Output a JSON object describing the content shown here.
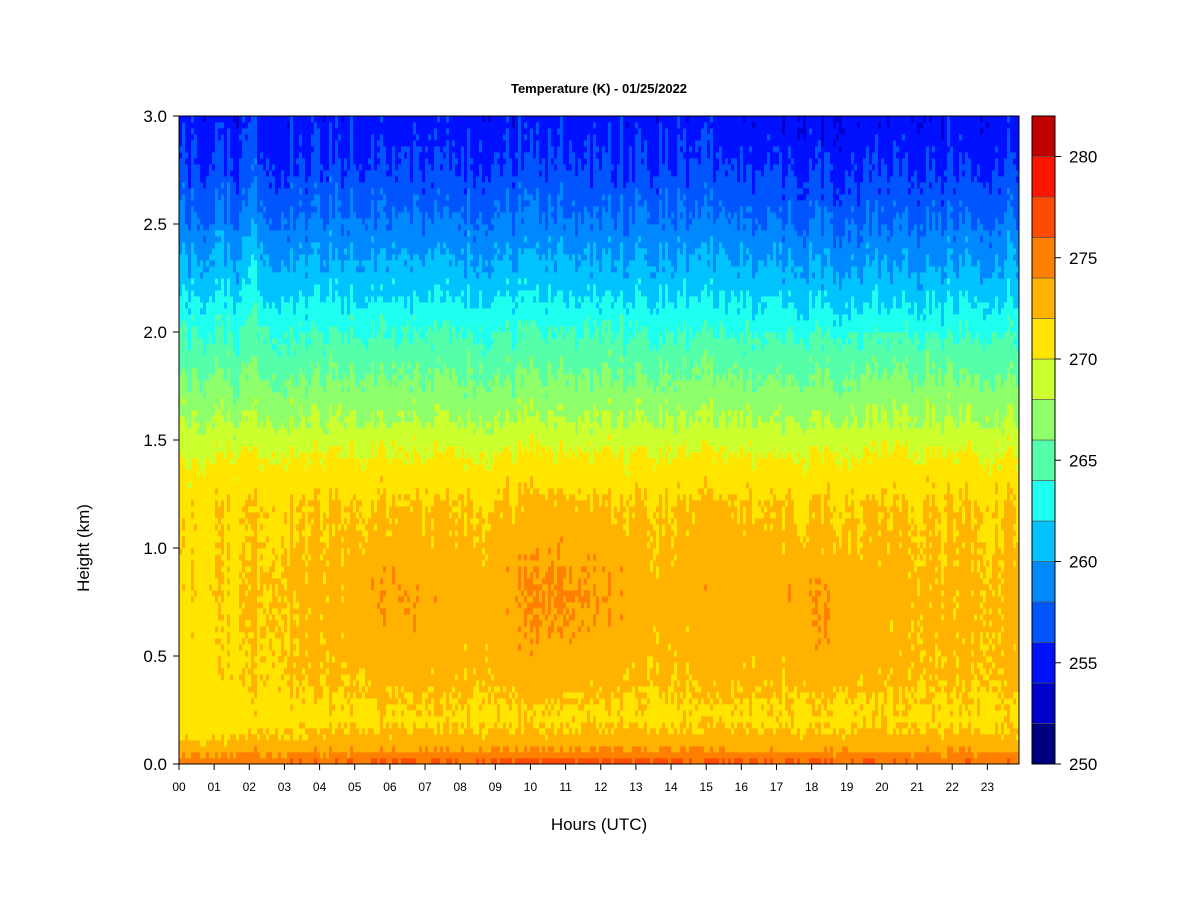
{
  "chart_data": {
    "type": "heatmap",
    "title": "Temperature (K) - 01/25/2022",
    "xlabel": "Hours (UTC)",
    "ylabel": "Height (km)",
    "xlim": [
      0,
      23.9
    ],
    "ylim": [
      0.0,
      3.0
    ],
    "x_ticks": [
      "00",
      "01",
      "02",
      "03",
      "04",
      "05",
      "06",
      "07",
      "08",
      "09",
      "10",
      "11",
      "12",
      "13",
      "14",
      "15",
      "16",
      "17",
      "18",
      "19",
      "20",
      "21",
      "22",
      "23"
    ],
    "y_ticks": [
      "0.0",
      "0.5",
      "1.0",
      "1.5",
      "2.0",
      "2.5",
      "3.0"
    ],
    "colorbar": {
      "range": [
        250,
        282
      ],
      "ticks": [
        "250",
        "255",
        "260",
        "265",
        "270",
        "275",
        "280"
      ],
      "levels": [
        250,
        252,
        254,
        256,
        258,
        260,
        262,
        264,
        266,
        268,
        270,
        272,
        274,
        276,
        278,
        280,
        282
      ],
      "colors": [
        "#00007f",
        "#0000cc",
        "#0011ff",
        "#0055ff",
        "#0088ff",
        "#00c3ff",
        "#1ffff0",
        "#55ffaa",
        "#8eff6a",
        "#ccff2e",
        "#ffe500",
        "#ffb300",
        "#ff7f00",
        "#ff4a00",
        "#ff1400",
        "#c10000",
        "#7f0000"
      ]
    },
    "profile_description_heights_km": [
      0.0,
      0.05,
      0.12,
      0.2,
      0.4,
      0.8,
      1.2,
      1.4,
      1.6,
      1.8,
      2.0,
      2.2,
      2.4,
      2.6,
      2.8,
      3.0
    ],
    "temperature_profile_K": [
      276,
      274,
      272.5,
      271.5,
      272.3,
      272.6,
      272.0,
      270.5,
      268,
      266,
      264,
      261.5,
      259.5,
      257.5,
      256,
      255
    ]
  }
}
